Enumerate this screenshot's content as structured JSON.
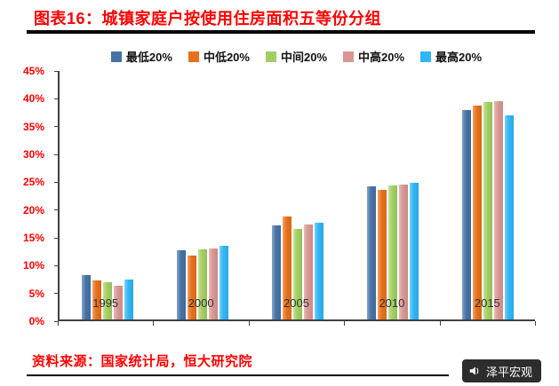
{
  "title": "图表16：城镇家庭户按使用住房面积五等份分组",
  "source": "资料来源：国家统计局，恒大研究院",
  "brand": {
    "name": "泽平宏观",
    "icon": "megaphone-icon"
  },
  "chart_data": {
    "type": "bar",
    "title": "城镇家庭户按使用住房面积五等份分组",
    "categories": [
      "1995",
      "2000",
      "2005",
      "2010",
      "2015"
    ],
    "series": [
      {
        "name": "最低20%",
        "color": "#4572A7",
        "values": [
          8.1,
          12.6,
          17.0,
          24.1,
          38.0
        ]
      },
      {
        "name": "中低20%",
        "color": "#E8701A",
        "values": [
          7.0,
          11.6,
          18.6,
          23.4,
          38.8
        ]
      },
      {
        "name": "中间20%",
        "color": "#A3CF62",
        "values": [
          6.7,
          12.7,
          16.4,
          24.3,
          39.4
        ]
      },
      {
        "name": "中高20%",
        "color": "#D99694",
        "values": [
          6.1,
          12.8,
          17.2,
          24.4,
          39.5
        ]
      },
      {
        "name": "最高20%",
        "color": "#2EB6F5",
        "values": [
          7.2,
          13.3,
          17.6,
          24.7,
          36.9
        ]
      }
    ],
    "xlabel": "",
    "ylabel": "",
    "ylim": [
      0,
      45
    ],
    "ytick_step": 5,
    "ytick_labels": [
      "0%",
      "5%",
      "10%",
      "15%",
      "20%",
      "25%",
      "30%",
      "35%",
      "40%",
      "45%"
    ],
    "legend_position": "top",
    "grid": false
  }
}
